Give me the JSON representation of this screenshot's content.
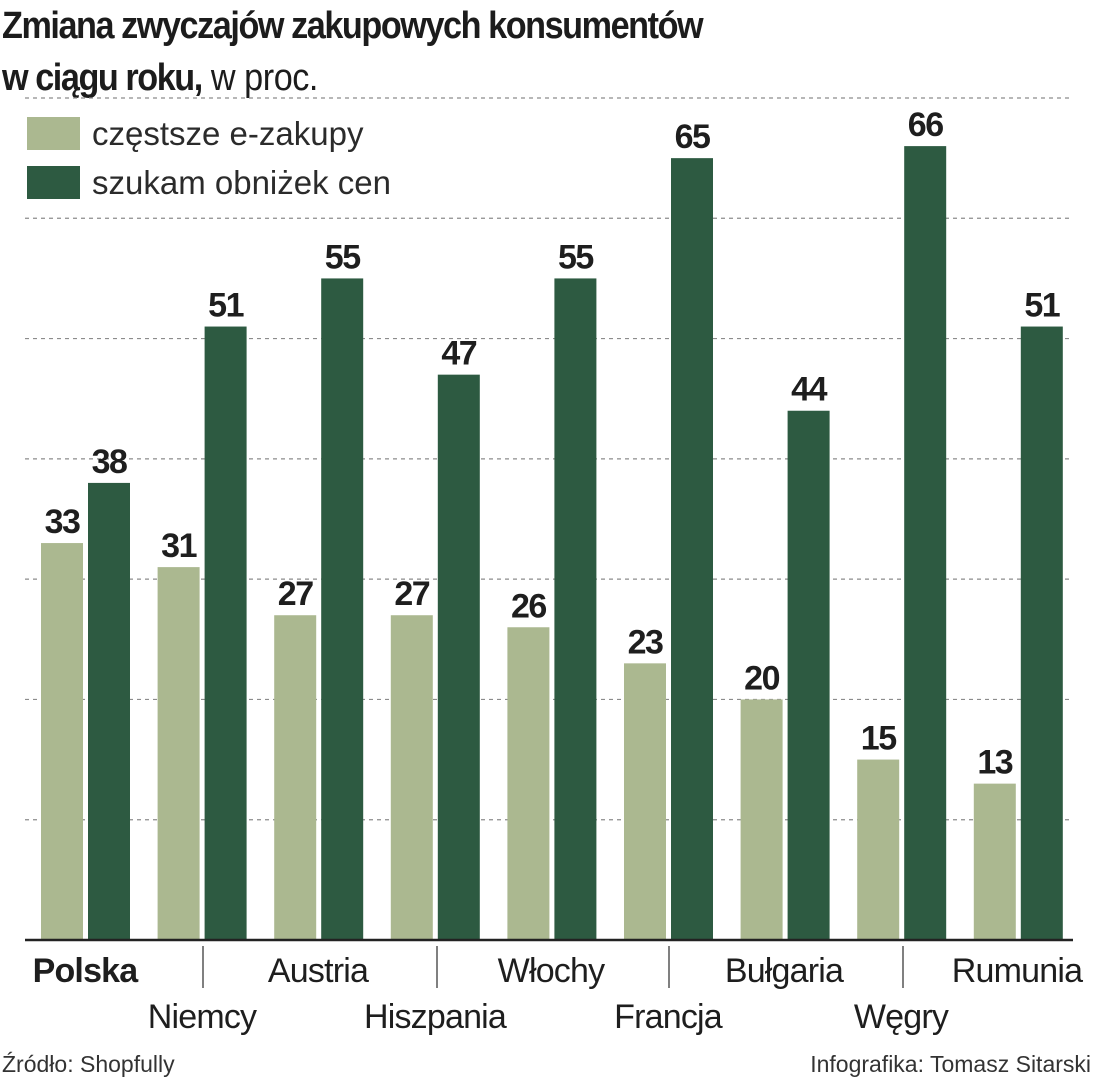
{
  "title": {
    "line1": "Zmiana zwyczajów zakupowych konsumentów",
    "line2_bold": "w ciągu roku,",
    "line2_unit": " w proc."
  },
  "colors": {
    "light": "#abb890",
    "dark": "#2d5a41",
    "grid": "#8c8c8c"
  },
  "chart_data": {
    "type": "bar",
    "ylim": [
      0,
      70
    ],
    "grid": true,
    "legend_position": "top-left",
    "categories": [
      "Polska",
      "Niemcy",
      "Austria",
      "Hiszpania",
      "Włochy",
      "Francja",
      "Bułgaria",
      "Węgry",
      "Rumunia"
    ],
    "highlighted_category": "Polska",
    "series": [
      {
        "name": "częstsze e-zakupy",
        "values": [
          33,
          31,
          27,
          27,
          26,
          23,
          20,
          15,
          13
        ]
      },
      {
        "name": "szukam obniżek cen",
        "values": [
          38,
          51,
          55,
          47,
          55,
          65,
          44,
          66,
          51
        ]
      }
    ]
  },
  "footer": {
    "source": "Źródło: Shopfully",
    "credit": "Infografika: Tomasz Sitarski"
  }
}
